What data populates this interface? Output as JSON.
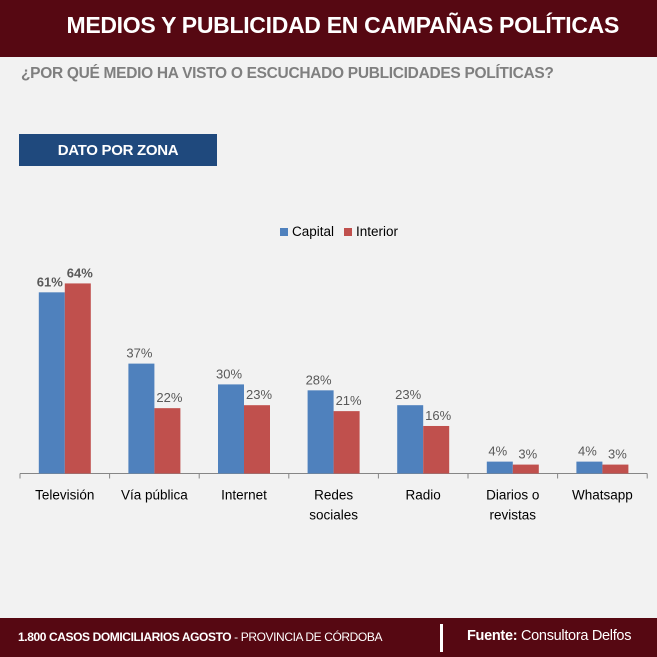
{
  "header": {
    "title": "MEDIOS Y PUBLICIDAD EN CAMPAÑAS POLÍTICAS"
  },
  "question": "¿POR QUÉ MEDIO HA VISTO O ESCUCHADO PUBLICIDADES POLÍTICAS?",
  "badge": {
    "label": "DATO POR ZONA"
  },
  "footer": {
    "cases_bold": "1.800  CASOS DOMICILIARIOS AGOSTO",
    "cases_rest": " - PROVINCIA DE CÓRDOBA",
    "source_label": "Fuente:",
    "source_value": " Consultora Delfos"
  },
  "colors": {
    "capital": "#4f81bd",
    "interior": "#c0504d",
    "header": "#560812",
    "badge": "#1f497d"
  },
  "chart_data": {
    "type": "bar",
    "title": "",
    "xlabel": "",
    "ylabel": "",
    "ylim": [
      0,
      70
    ],
    "grid": false,
    "legend_position": "top-center",
    "categories": [
      [
        "Televisión"
      ],
      [
        "Vía pública"
      ],
      [
        "Internet"
      ],
      [
        "Redes",
        "sociales"
      ],
      [
        "Radio"
      ],
      [
        "Diarios o",
        "revistas"
      ],
      [
        "Whatsapp"
      ]
    ],
    "series": [
      {
        "name": "Capital",
        "values": [
          61,
          37,
          30,
          28,
          23,
          4,
          4
        ],
        "labels": [
          "61%",
          "37%",
          "30%",
          "28%",
          "23%",
          "4%",
          "4%"
        ]
      },
      {
        "name": "Interior",
        "values": [
          64,
          22,
          23,
          21,
          16,
          3,
          3
        ],
        "labels": [
          "64%",
          "22%",
          "23%",
          "21%",
          "16%",
          "3%",
          "3%"
        ]
      }
    ]
  }
}
